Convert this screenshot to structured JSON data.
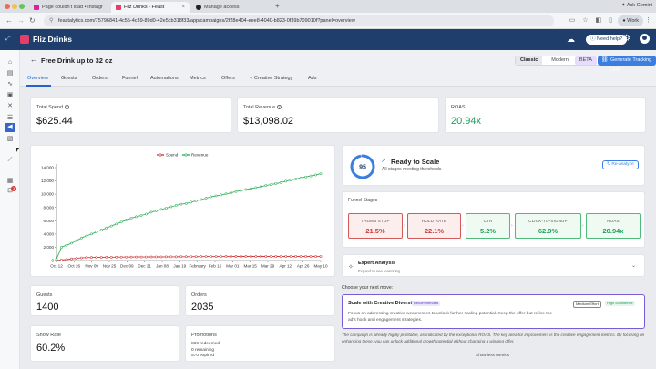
{
  "browser": {
    "tabs": [
      {
        "title": "Page couldn't load • Instagr",
        "favicon_color": "#d6249f"
      },
      {
        "title": "Fliz Drinks - Feast",
        "favicon_color": "#e23f6b"
      },
      {
        "title": "Manage access",
        "favicon_color": "#222222"
      }
    ],
    "new_tab_label": "+",
    "ask_label": "Ask Gemini",
    "url": "feastalytics.com/75796841-4c55-4c39-89d0-42e5cb318f33/app/campaigns/2f28e404-eee8-4040-b823-0f39b709010f?panel=overview",
    "profile_label": "Work"
  },
  "app": {
    "brand": "Fliz Drinks",
    "help_label": "Need help?"
  },
  "page": {
    "title": "Free Drink up to 32 oz",
    "view_toggle": {
      "classic": "Classic",
      "modern": "Modern",
      "beta": "BETA"
    },
    "generate_label": "Generate Tracking Link"
  },
  "tabs": [
    "Overview",
    "Guests",
    "Orders",
    "Funnel",
    "Automations",
    "Metrics",
    "Offers",
    "Creative Strategy",
    "Ads"
  ],
  "kpis": {
    "spend": {
      "label": "Total Spend",
      "value": "$625.44"
    },
    "revenue": {
      "label": "Total Revenue",
      "value": "$13,098.02"
    },
    "roas": {
      "label": "ROAS",
      "value": "20.94x"
    }
  },
  "chart_data": {
    "type": "line",
    "title": "",
    "xlabel": "",
    "ylabel": "",
    "legend_position": "top-center",
    "grid": false,
    "x": [
      "Oct 12",
      "Oct 16",
      "Oct 20",
      "Oct 24",
      "Oct 28",
      "Nov 1",
      "Nov 5",
      "Nov 9",
      "Nov 13",
      "Nov 17",
      "Nov 21",
      "Nov 25",
      "Nov 29",
      "Dec 3",
      "Dec 7",
      "Dec 11",
      "Dec 15",
      "Dec 19",
      "Dec 23",
      "Dec 27",
      "Dec 31",
      "Jan 4",
      "Jan 8",
      "Jan 12",
      "Jan 16",
      "Jan 20",
      "Jan 24",
      "Jan 28",
      "Feb 1",
      "Feb 5",
      "Feb 9",
      "Feb 13",
      "Feb 17",
      "Feb 21",
      "Feb 25",
      "Mar 1",
      "Mar 5",
      "Mar 9",
      "Mar 13",
      "Mar 17",
      "Mar 21",
      "Mar 25",
      "Mar 29",
      "Apr 2",
      "Apr 6",
      "Apr 10",
      "Apr 14",
      "Apr 18",
      "Apr 22",
      "Apr 26",
      "Apr 30",
      "May 4",
      "May 8",
      "May 12"
    ],
    "x_ticks": [
      "Oct 12",
      "Oct 26",
      "Nov 09",
      "Nov 25",
      "Dec 09",
      "Dec 21",
      "Jan 08",
      "Jan 19",
      "February",
      "Feb 15",
      "Mar 01",
      "Mar 15",
      "Mar 29",
      "Apr 12",
      "Apr 26",
      "May 10"
    ],
    "ylim": [
      0,
      14000
    ],
    "y_ticks": [
      "0",
      "2,000",
      "4,000",
      "6,000",
      "8,000",
      "10,000",
      "12,000",
      "14,000"
    ],
    "series": [
      {
        "name": "Spend",
        "color": "#d63a3a",
        "values": [
          0,
          80,
          160,
          250,
          330,
          400,
          440,
          460,
          470,
          480,
          490,
          500,
          510,
          515,
          520,
          525,
          530,
          535,
          540,
          545,
          550,
          555,
          560,
          565,
          570,
          575,
          580,
          585,
          590,
          595,
          600,
          600,
          605,
          605,
          610,
          610,
          612,
          614,
          615,
          616,
          617,
          618,
          619,
          620,
          620,
          621,
          622,
          622,
          623,
          623,
          624,
          624,
          625,
          625
        ]
      },
      {
        "name": "Revenue",
        "color": "#36b15f",
        "values": [
          200,
          2000,
          2300,
          2600,
          3000,
          3400,
          3700,
          4000,
          4300,
          4600,
          4900,
          5200,
          5500,
          5800,
          6100,
          6400,
          6600,
          6800,
          7000,
          7300,
          7500,
          7700,
          7900,
          8100,
          8300,
          8500,
          8600,
          8800,
          9000,
          9200,
          9400,
          9600,
          9750,
          9900,
          10050,
          10200,
          10400,
          10550,
          10700,
          10850,
          11000,
          11150,
          11300,
          11450,
          11600,
          11750,
          11950,
          12150,
          12300,
          12450,
          12600,
          12750,
          12900,
          13098
        ]
      }
    ]
  },
  "ready": {
    "score": "95",
    "score_fraction": 0.95,
    "title": "Ready to Scale",
    "subtitle": "All stages meeting thresholds",
    "reanalyze_label": "Re-analyze"
  },
  "funnel": {
    "label": "Funnel Stages",
    "stages": [
      {
        "name": "THUMB STOP",
        "value": "21.5%",
        "status": "red"
      },
      {
        "name": "HOLD RATE",
        "value": "22.1%",
        "status": "red"
      },
      {
        "name": "CTR",
        "value": "5.2%",
        "status": "green"
      },
      {
        "name": "CLICK-TO-SIGNUP",
        "value": "62.9%",
        "status": "green"
      },
      {
        "name": "ROAS",
        "value": "20.94x",
        "status": "green"
      }
    ]
  },
  "expert": {
    "title": "Expert Analysis",
    "subtitle": "Expand to see reasoning"
  },
  "next_move_label": "Choose your next move:",
  "recommendation": {
    "title": "Scale with Creative Diversity",
    "badge": "Recommended",
    "effort": "Medium Effort",
    "confidence": "High confidence",
    "body": "Focus on addressing creative weaknesses to unlock further scaling potential. Keep the offer but refine the ad's hook and engagement strategies."
  },
  "summary": "The campaign is already highly profitable, as indicated by the exceptional ROAS. The key area for improvement is the creative engagement metrics. By focusing on enhancing these, you can unlock additional growth potential without changing a winning offer.",
  "show_more_label": "Show less metrics",
  "stats": {
    "guests": {
      "label": "Guests",
      "value": "1400"
    },
    "orders": {
      "label": "Orders",
      "value": "2035"
    },
    "show_rate": {
      "label": "Show Rate",
      "value": "60.2%"
    },
    "promotions": {
      "label": "Promotions",
      "lines": [
        "869 redeemed",
        "0 remaining",
        "570 expired"
      ]
    }
  }
}
